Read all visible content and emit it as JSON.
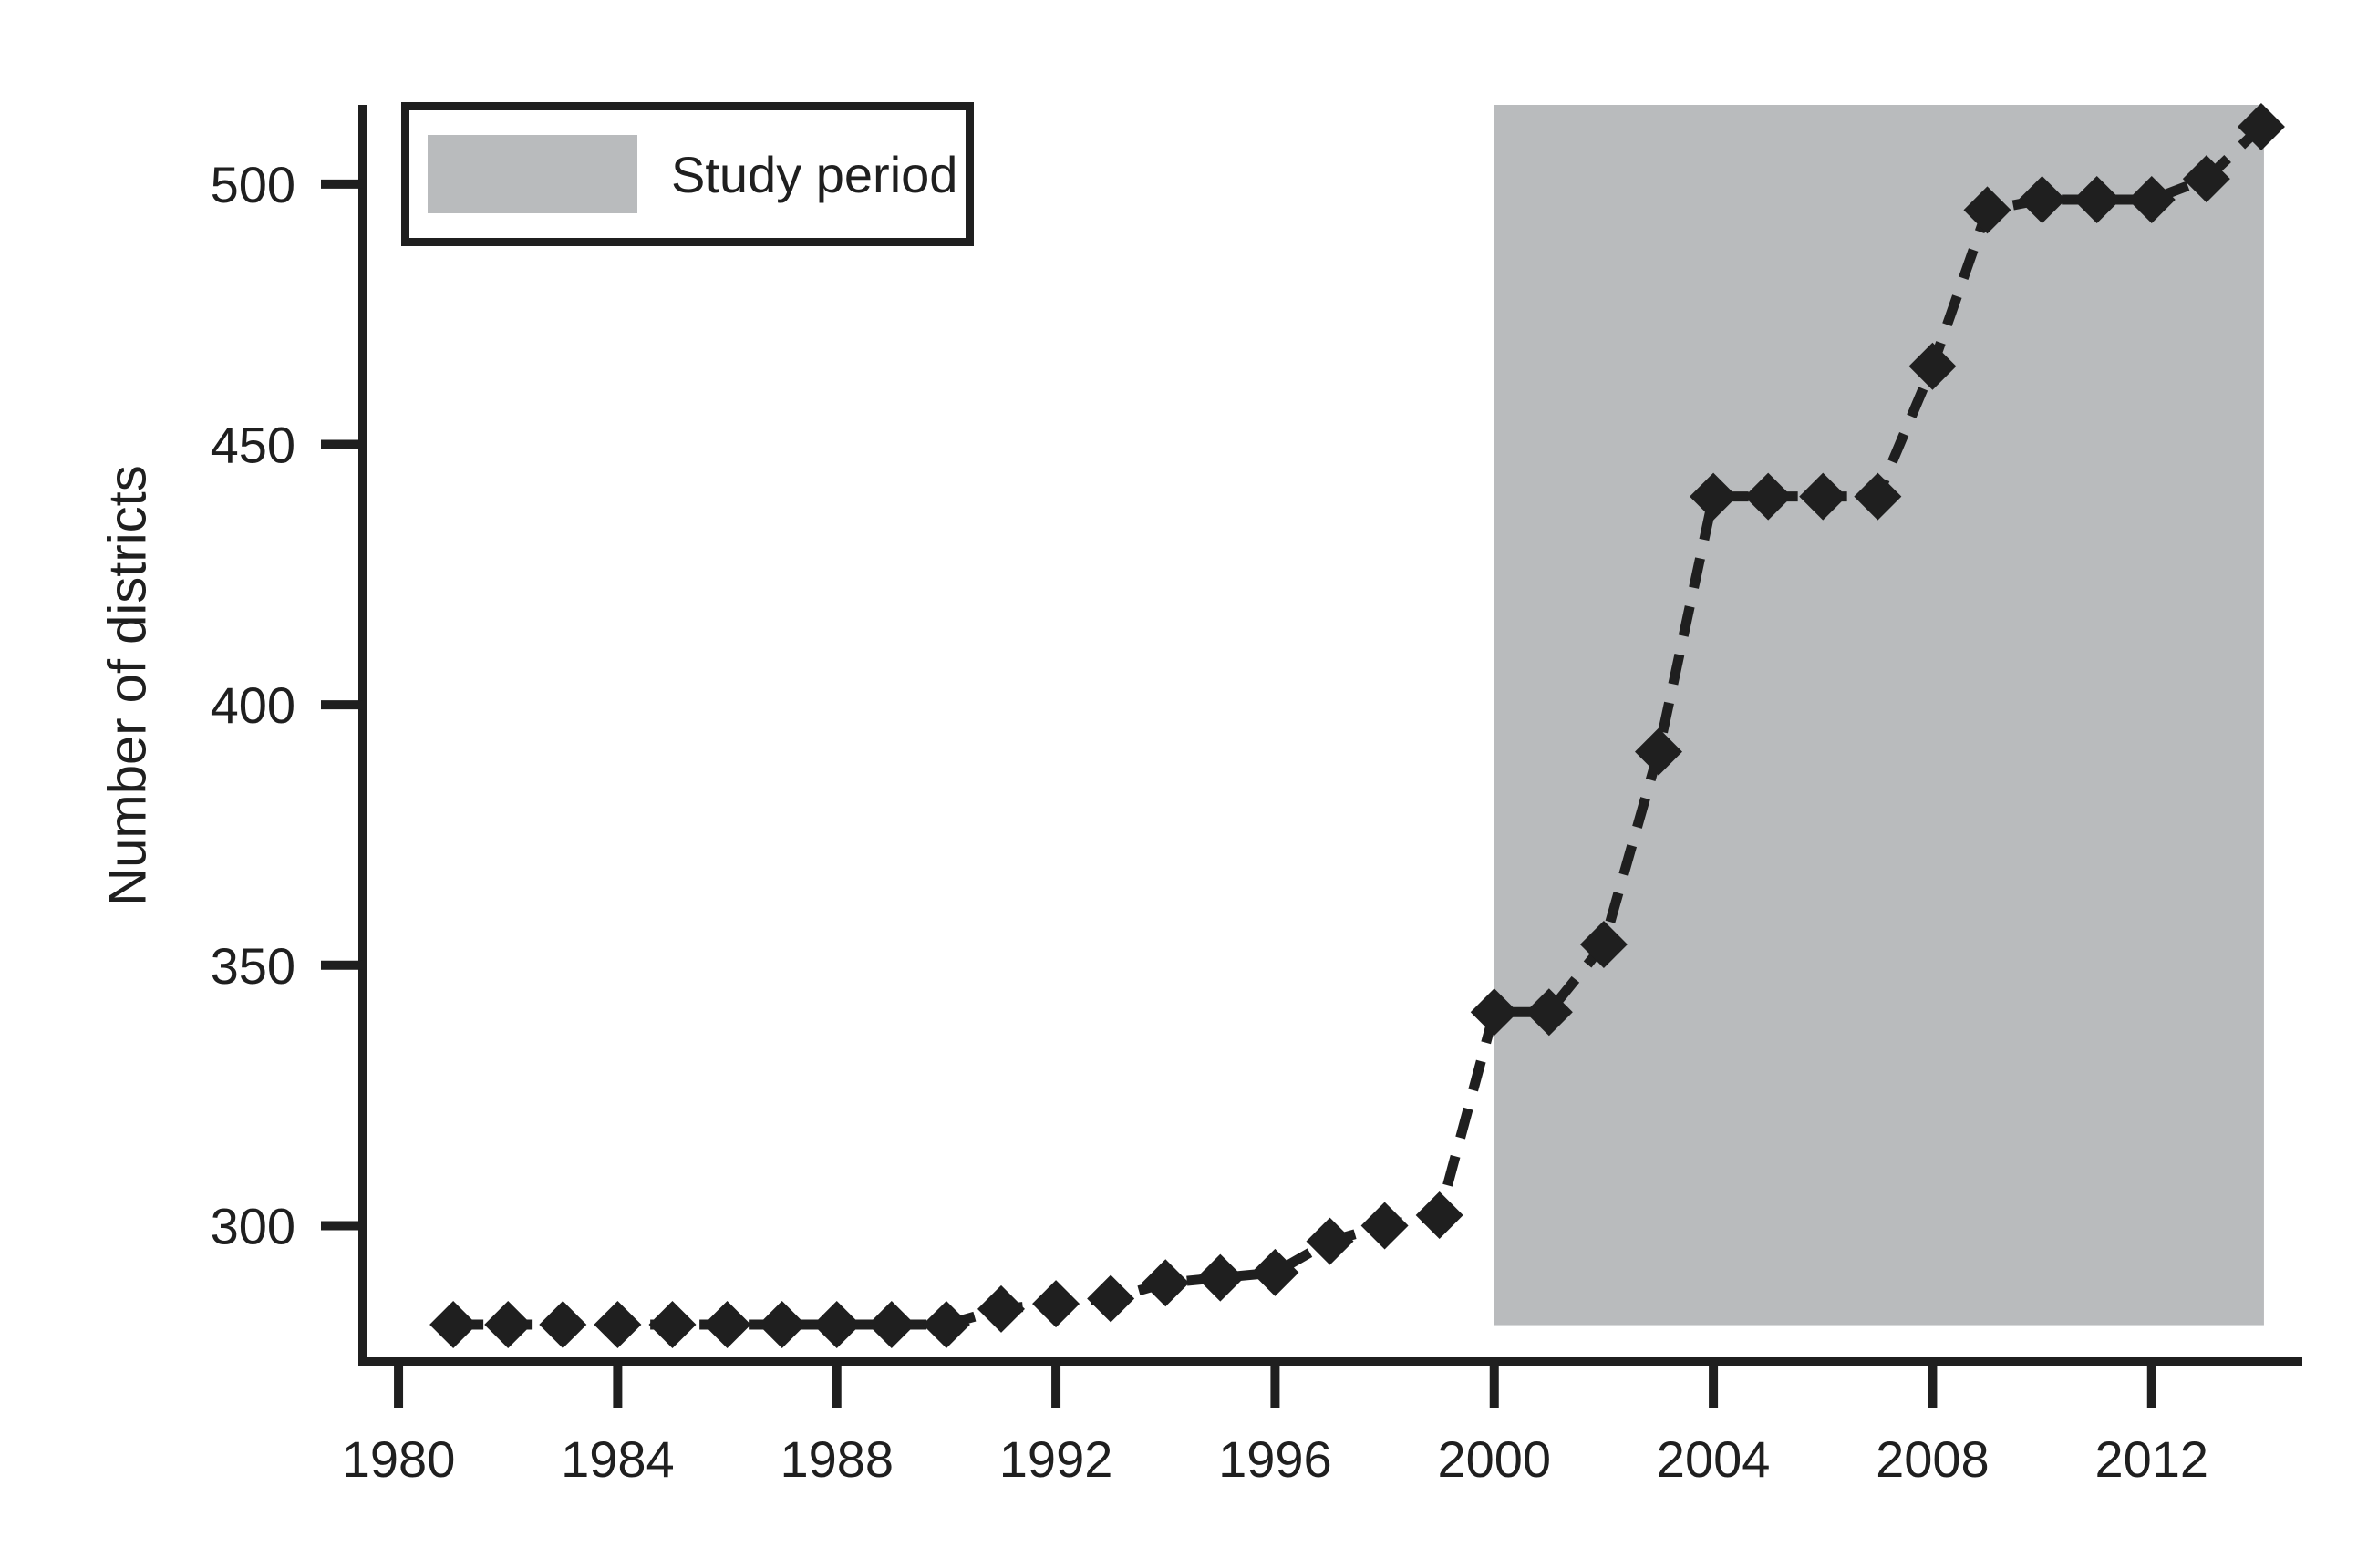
{
  "chart_data": {
    "type": "line",
    "title": "",
    "xlabel": "",
    "ylabel": "Number of districts",
    "series": [
      {
        "name": "Number of districts",
        "x": [
          1981,
          1982,
          1983,
          1984,
          1985,
          1986,
          1987,
          1988,
          1989,
          1990,
          1991,
          1992,
          1993,
          1994,
          1995,
          1996,
          1997,
          1998,
          1999,
          2000,
          2001,
          2002,
          2003,
          2004,
          2005,
          2006,
          2007,
          2008,
          2009,
          2010,
          2011,
          2012,
          2013,
          2014
        ],
        "values": [
          281,
          281,
          281,
          281,
          281,
          281,
          281,
          281,
          281,
          281,
          284,
          285,
          286,
          289,
          290,
          291,
          297,
          300,
          302,
          341,
          341,
          354,
          391,
          440,
          440,
          440,
          440,
          465,
          495,
          497,
          497,
          497,
          501,
          511
        ]
      }
    ],
    "x_ticks": [
      1980,
      1984,
      1988,
      1992,
      1996,
      2000,
      2004,
      2008,
      2012
    ],
    "y_ticks": [
      300,
      350,
      400,
      450,
      500
    ],
    "xlim": [
      1979.35,
      2014.75
    ],
    "ylim": [
      274,
      515.2
    ],
    "grid": false,
    "line_style": "dashed",
    "marker": "diamond",
    "legend": {
      "position": "top-left",
      "entries": [
        {
          "label": "Study period",
          "swatch_color": "#b9bbbd"
        }
      ]
    },
    "shaded_region": {
      "label": "Study period",
      "x_start": 2000,
      "x_end": 2014.05,
      "y_bottom": 280.9,
      "y_top": 515.2,
      "color": "#b9bbbd"
    },
    "colors": {
      "line": "#1f1f1f",
      "marker": "#1f1f1f",
      "text": "#1f1f1f",
      "shade": "#b9bbbd",
      "background": "#ffffff"
    }
  }
}
